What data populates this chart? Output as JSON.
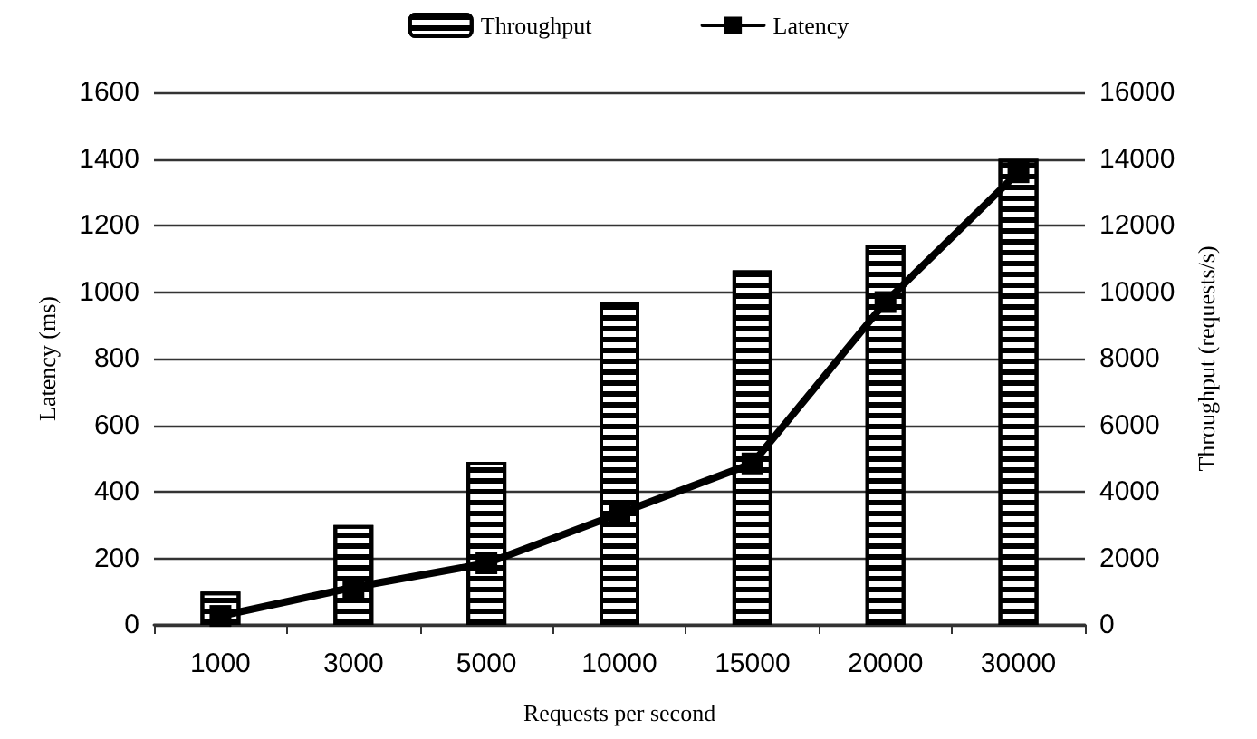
{
  "chart_data": {
    "type": "bar",
    "categories": [
      "1000",
      "3000",
      "5000",
      "10000",
      "15000",
      "20000",
      "30000"
    ],
    "xlabel": "Requests per second",
    "ylabel": "Latency (ms)",
    "y2label": "Throughput (requests/s)",
    "series": [
      {
        "name": "Throughput",
        "axis": "y2",
        "color": "#000000",
        "values": [
          1000,
          3000,
          4900,
          9700,
          10650,
          11400,
          14000
        ]
      },
      {
        "name": "Latency",
        "type": "line",
        "color": "#000000",
        "marker": "square",
        "values": [
          27,
          113,
          185,
          335,
          485,
          970,
          1360
        ]
      }
    ],
    "ylim": [
      0,
      1600
    ],
    "yticks": [
      0,
      200,
      400,
      600,
      800,
      1000,
      1200,
      1400,
      1600
    ],
    "y2lim": [
      0,
      16000
    ],
    "y2ticks": [
      0,
      2000,
      4000,
      6000,
      8000,
      10000,
      12000,
      14000,
      16000
    ],
    "grid": "y",
    "legend": "top"
  }
}
